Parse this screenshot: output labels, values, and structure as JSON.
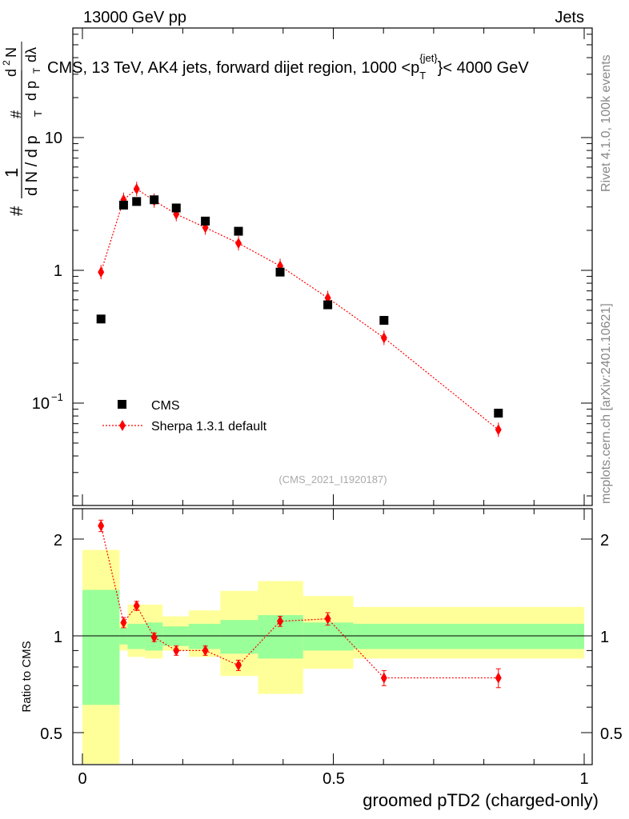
{
  "header": {
    "left": "13000 GeV pp",
    "right": "Jets"
  },
  "side_labels": {
    "rivet": "Rivet 4.1.0,  100k events",
    "mcplots": "mcplots.cern.ch [arXiv:2401.10621]"
  },
  "main_plot": {
    "title_prefix": "CMS, 13 TeV, AK4 jets, forward dijet region, 1000 <p",
    "title_sub": "T",
    "title_sup": "{jet}",
    "title_suffix": "}< 4000 GeV",
    "watermark": "(CMS_2021_I1920187)",
    "y_label_parts": {
      "hash": "#",
      "one": "1",
      "dN": "d N / d p",
      "T": "T",
      "d2N": "d",
      "two": "2",
      "N": "N",
      "dpT": "d p",
      "dlambda": "dλ"
    },
    "y_ticks": [
      {
        "value": 0.1,
        "label": "10",
        "exp": "−1"
      },
      {
        "value": 1,
        "label": "1",
        "exp": ""
      },
      {
        "value": 10,
        "label": "10",
        "exp": ""
      }
    ],
    "legend": {
      "data_label": "CMS",
      "mc_label": "Sherpa 1.3.1 default"
    }
  },
  "ratio_plot": {
    "y_label": "Ratio to CMS",
    "y_ticks": [
      "0.5",
      "1",
      "2"
    ],
    "x_label": "groomed pTD2 (charged-only)",
    "x_ticks": [
      "0",
      "0.5",
      "1"
    ]
  },
  "chart_data": {
    "type": "scatter",
    "xlabel": "groomed pTD2 (charged-only)",
    "ylabel": "1/dN/dpT dN/dpT dlambda",
    "y_scale": "log",
    "xlim": [
      0,
      1
    ],
    "ylim": [
      0.02,
      60
    ],
    "ratio_ylim": [
      0.4,
      2.4
    ],
    "series": [
      {
        "name": "CMS",
        "marker": "square",
        "color": "#000000",
        "points": [
          {
            "x": 0.037,
            "y": 0.43
          },
          {
            "x": 0.082,
            "y": 3.1
          },
          {
            "x": 0.108,
            "y": 3.3
          },
          {
            "x": 0.143,
            "y": 3.4
          },
          {
            "x": 0.187,
            "y": 2.95
          },
          {
            "x": 0.245,
            "y": 2.35
          },
          {
            "x": 0.311,
            "y": 1.97
          },
          {
            "x": 0.394,
            "y": 0.97
          },
          {
            "x": 0.489,
            "y": 0.55
          },
          {
            "x": 0.601,
            "y": 0.42
          },
          {
            "x": 0.829,
            "y": 0.084
          }
        ]
      },
      {
        "name": "Sherpa 1.3.1 default",
        "marker": "diamond",
        "color": "#ff0000",
        "points": [
          {
            "x": 0.037,
            "y": 0.97,
            "ratio": 2.2,
            "ratio_err": 0.09
          },
          {
            "x": 0.082,
            "y": 3.4,
            "ratio": 1.1,
            "ratio_err": 0.04
          },
          {
            "x": 0.108,
            "y": 4.1,
            "ratio": 1.24,
            "ratio_err": 0.04
          },
          {
            "x": 0.143,
            "y": 3.35,
            "ratio": 0.99,
            "ratio_err": 0.03
          },
          {
            "x": 0.187,
            "y": 2.65,
            "ratio": 0.9,
            "ratio_err": 0.03
          },
          {
            "x": 0.245,
            "y": 2.1,
            "ratio": 0.9,
            "ratio_err": 0.03
          },
          {
            "x": 0.311,
            "y": 1.6,
            "ratio": 0.81,
            "ratio_err": 0.03
          },
          {
            "x": 0.394,
            "y": 1.08,
            "ratio": 1.11,
            "ratio_err": 0.04
          },
          {
            "x": 0.489,
            "y": 0.62,
            "ratio": 1.13,
            "ratio_err": 0.05
          },
          {
            "x": 0.601,
            "y": 0.31,
            "ratio": 0.74,
            "ratio_err": 0.04
          },
          {
            "x": 0.829,
            "y": 0.063,
            "ratio": 0.74,
            "ratio_err": 0.05
          }
        ]
      }
    ],
    "uncertainty_bands": [
      {
        "x0": 0.0,
        "x1": 0.074,
        "inner": [
          0.61,
          1.39
        ],
        "outer": [
          0.4,
          1.85
        ]
      },
      {
        "x0": 0.074,
        "x1": 0.09,
        "inner": [
          0.94,
          1.06
        ],
        "outer": [
          0.9,
          1.1
        ]
      },
      {
        "x0": 0.09,
        "x1": 0.125,
        "inner": [
          0.91,
          1.09
        ],
        "outer": [
          0.86,
          1.25
        ]
      },
      {
        "x0": 0.125,
        "x1": 0.16,
        "inner": [
          0.9,
          1.1
        ],
        "outer": [
          0.85,
          1.25
        ]
      },
      {
        "x0": 0.16,
        "x1": 0.212,
        "inner": [
          0.93,
          1.07
        ],
        "outer": [
          0.9,
          1.15
        ]
      },
      {
        "x0": 0.212,
        "x1": 0.275,
        "inner": [
          0.91,
          1.09
        ],
        "outer": [
          0.86,
          1.2
        ]
      },
      {
        "x0": 0.275,
        "x1": 0.35,
        "inner": [
          0.88,
          1.12
        ],
        "outer": [
          0.75,
          1.38
        ]
      },
      {
        "x0": 0.35,
        "x1": 0.44,
        "inner": [
          0.85,
          1.16
        ],
        "outer": [
          0.66,
          1.48
        ]
      },
      {
        "x0": 0.44,
        "x1": 0.54,
        "inner": [
          0.9,
          1.1
        ],
        "outer": [
          0.79,
          1.33
        ]
      },
      {
        "x0": 0.54,
        "x1": 1.0,
        "inner": [
          0.91,
          1.09
        ],
        "outer": [
          0.85,
          1.23
        ]
      }
    ]
  }
}
